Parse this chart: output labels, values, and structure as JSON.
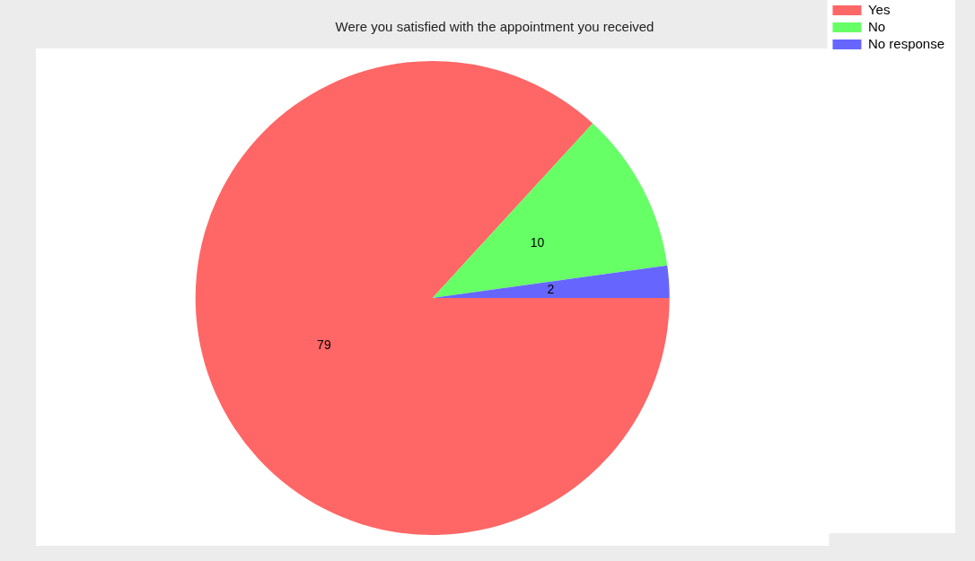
{
  "chart_data": {
    "type": "pie",
    "title": "Were you satisfied with the appointment you received",
    "categories": [
      "Yes",
      "No",
      "No response"
    ],
    "values": [
      79,
      10,
      2
    ],
    "colors": [
      "#ff6666",
      "#66ff66",
      "#6666ff"
    ],
    "data_labels": true,
    "legend": "top right"
  }
}
